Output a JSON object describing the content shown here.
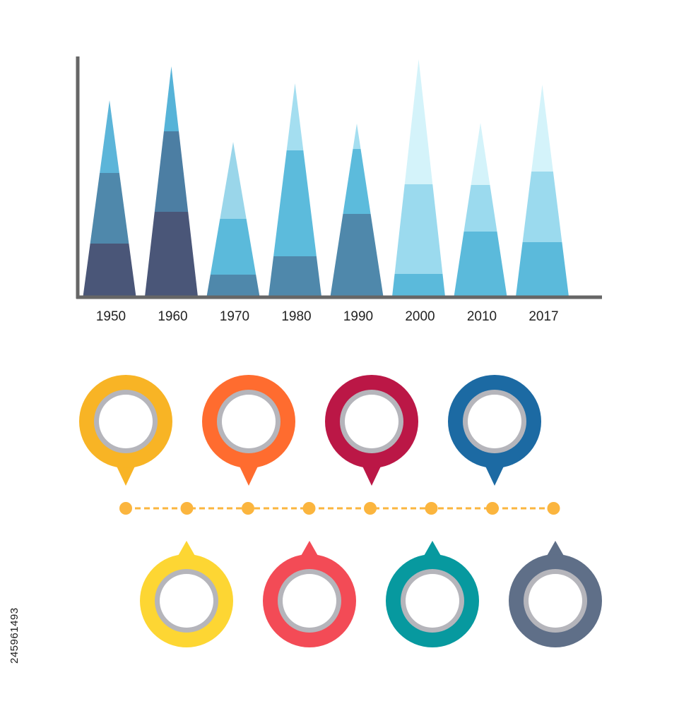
{
  "chart_data": {
    "type": "bar",
    "categories": [
      "1950",
      "1960",
      "1970",
      "1980",
      "1990",
      "2000",
      "2010",
      "2017"
    ],
    "values": [
      278,
      326,
      219,
      302,
      245,
      336,
      246,
      300
    ],
    "segments": [
      [
        75,
        100,
        103
      ],
      [
        120,
        114,
        92
      ],
      [
        31,
        79,
        109
      ],
      [
        57,
        150,
        95
      ],
      [
        117,
        92,
        36
      ],
      [
        32,
        127,
        177
      ],
      [
        92,
        66,
        88
      ],
      [
        77,
        100,
        123
      ]
    ],
    "segment_colors": [
      [
        "#4a5678",
        "#4f88ab",
        "#5cb5d9"
      ],
      [
        "#4a5678",
        "#4c7ea3",
        "#56b3d8"
      ],
      [
        "#4f88ab",
        "#5bbadb",
        "#9ad6ea"
      ],
      [
        "#4f88ab",
        "#5cbbdc",
        "#a4def0"
      ],
      [
        "#4f88ab",
        "#5cbbdc",
        "#a4def0"
      ],
      [
        "#5bbadb",
        "#9bdaee",
        "#d4f3fa"
      ],
      [
        "#5bbadb",
        "#9bdaee",
        "#d4f3fa"
      ],
      [
        "#5bbadb",
        "#9bdaee",
        "#d4f3fa"
      ]
    ],
    "ylim": [
      0,
      340
    ],
    "grid": false,
    "axis_color": "#666666"
  },
  "pins_top": [
    {
      "name": "pin-orange-yellow",
      "color": "#f8b425"
    },
    {
      "name": "pin-orange",
      "color": "#ff6c2f"
    },
    {
      "name": "pin-crimson",
      "color": "#bb1746"
    },
    {
      "name": "pin-blue",
      "color": "#1c6aa3"
    }
  ],
  "pins_bottom": [
    {
      "name": "pin-yellow",
      "color": "#fdd633"
    },
    {
      "name": "pin-red",
      "color": "#f34b56"
    },
    {
      "name": "pin-teal",
      "color": "#07999f"
    },
    {
      "name": "pin-slate",
      "color": "#5f6f88"
    }
  ],
  "pin_ring_color": "#b5b5bb",
  "timeline": {
    "color": "#fbb53e",
    "dot_count": 8
  },
  "stock_id": "245961493"
}
